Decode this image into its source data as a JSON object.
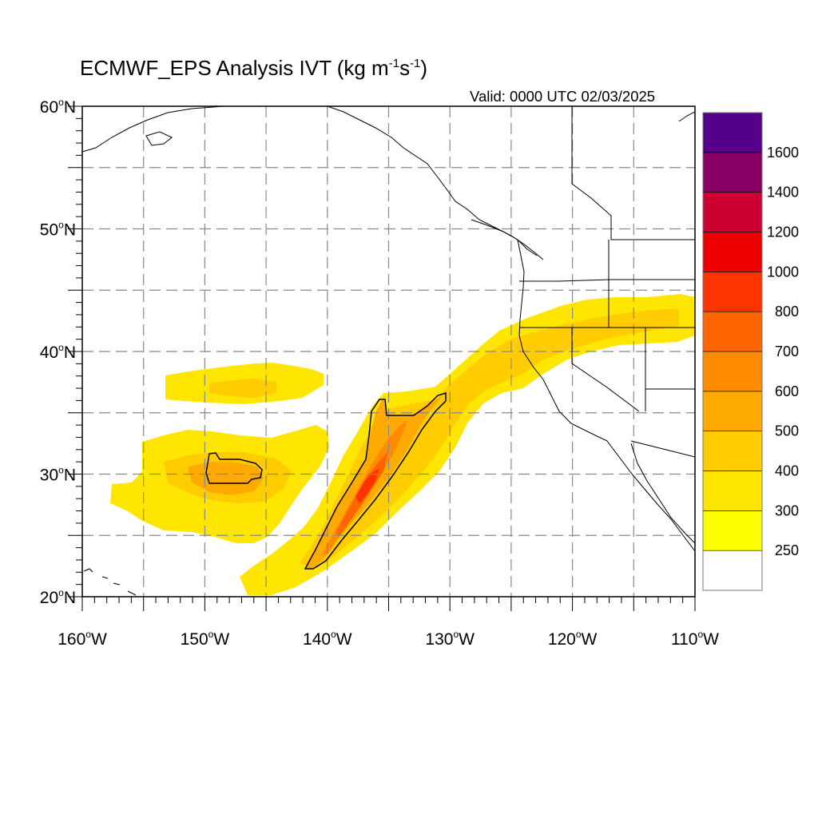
{
  "title": {
    "main": "ECMWF_EPS Analysis IVT (kg m",
    "exp1": "-1",
    "mid": "s",
    "exp2": "-1",
    "end": ")"
  },
  "valid": "Valid: 0000 UTC 02/03/2025",
  "map": {
    "region": "Northeast Pacific / western North America",
    "lon_range": [
      -160,
      -110
    ],
    "lat_range": [
      20,
      60
    ],
    "grid_spacing_deg": 5,
    "grid_style": "dashed gray",
    "lat_labels": [
      {
        "value": 60,
        "num": "60",
        "hemi": "N"
      },
      {
        "value": 50,
        "num": "50",
        "hemi": "N"
      },
      {
        "value": 40,
        "num": "40",
        "hemi": "N"
      },
      {
        "value": 30,
        "num": "30",
        "hemi": "N"
      },
      {
        "value": 20,
        "num": "20",
        "hemi": "N"
      }
    ],
    "lon_labels": [
      {
        "value": -160,
        "num": "160",
        "hemi": "W"
      },
      {
        "value": -150,
        "num": "150",
        "hemi": "W"
      },
      {
        "value": -140,
        "num": "140",
        "hemi": "W"
      },
      {
        "value": -130,
        "num": "130",
        "hemi": "W"
      },
      {
        "value": -120,
        "num": "120",
        "hemi": "W"
      },
      {
        "value": -110,
        "num": "110",
        "hemi": "W"
      }
    ],
    "contour_level": 500,
    "features": [
      {
        "name": "atmospheric-river",
        "peak_ivt_range": [
          800,
          1000
        ],
        "from": [
          -141.5,
          22.5
        ],
        "to": [
          -123,
          41
        ],
        "landfall": "northern California / southern Oregon"
      },
      {
        "name": "secondary-moisture-plume",
        "center": [
          -148,
          30.5
        ],
        "peak_ivt_range": [
          500,
          600
        ]
      },
      {
        "name": "northern-moisture-band",
        "center": [
          -147.5,
          37.5
        ],
        "peak_ivt_range": [
          250,
          400
        ]
      }
    ]
  },
  "colorbar": {
    "colors": [
      "#ffffff",
      "#ffff00",
      "#ffe600",
      "#ffcc00",
      "#ffaa00",
      "#ff8c00",
      "#ff6600",
      "#ff3300",
      "#ee0000",
      "#cc0033",
      "#880066",
      "#55008a"
    ],
    "labels": [
      {
        "level": 250,
        "text": "250"
      },
      {
        "level": 300,
        "text": "300"
      },
      {
        "level": 400,
        "text": "400"
      },
      {
        "level": 500,
        "text": "500"
      },
      {
        "level": 600,
        "text": "600"
      },
      {
        "level": 700,
        "text": "700"
      },
      {
        "level": 800,
        "text": "800"
      },
      {
        "level": 1000,
        "text": "1000"
      },
      {
        "level": 1200,
        "text": "1200"
      },
      {
        "level": 1400,
        "text": "1400"
      },
      {
        "level": 1600,
        "text": "1600"
      }
    ]
  }
}
